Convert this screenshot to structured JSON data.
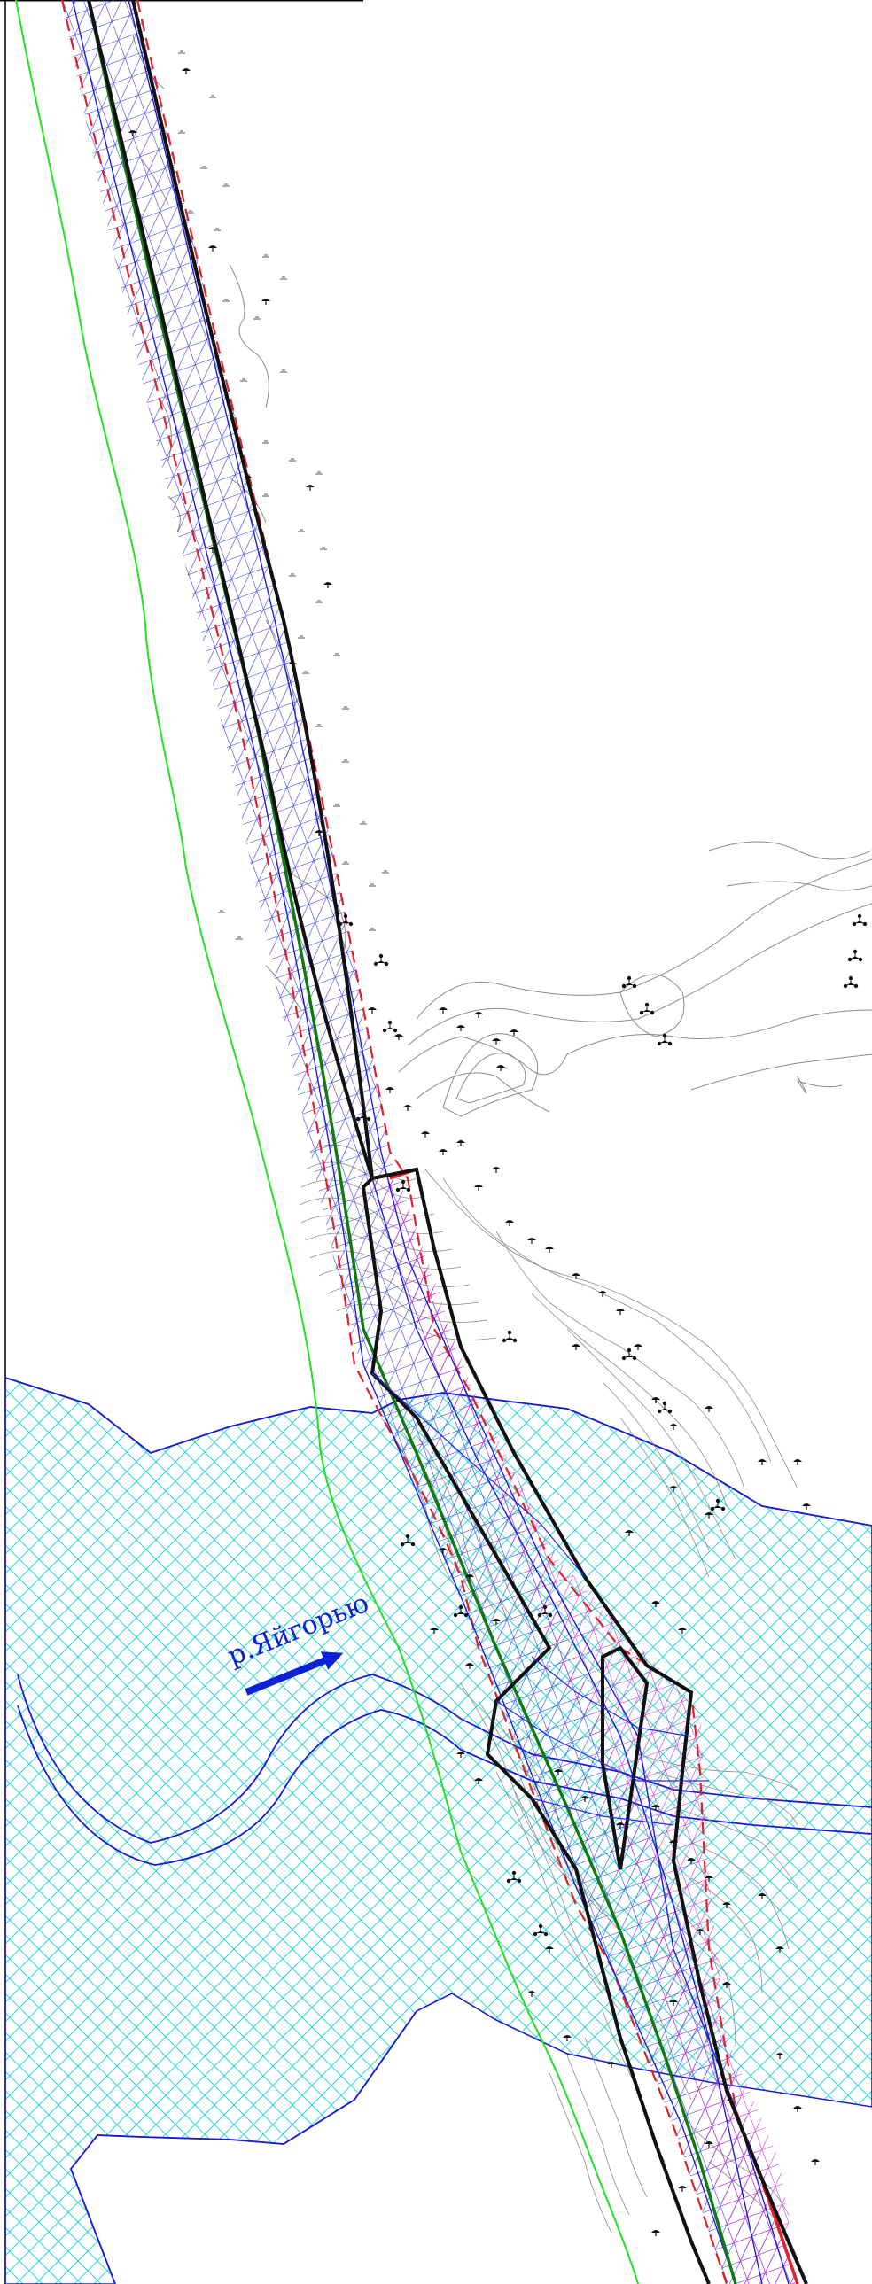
{
  "river": {
    "name_label": "р.Яйгорью",
    "flow_direction_icon": "arrow-right-icon"
  },
  "colors": {
    "water_hatch": "#2fd6d6",
    "water_outline": "#1a1ad6",
    "green_line": "#22e022",
    "corridor_red_dash": "#e0202a",
    "corridor_blue_grid": "#2a2ae8",
    "corridor_magenta_grid": "#d020d0",
    "pipeline_axis_green": "#0f7a0f",
    "boundary_black": "#111111",
    "contours_gray": "#8c8c8c",
    "river_label_blue": "#0a21d6"
  },
  "symbols": {
    "marsh_symbol": "marsh-icon",
    "shrub_symbol": "shrub-icon",
    "tree_group_symbol": "tree-cluster-icon"
  }
}
